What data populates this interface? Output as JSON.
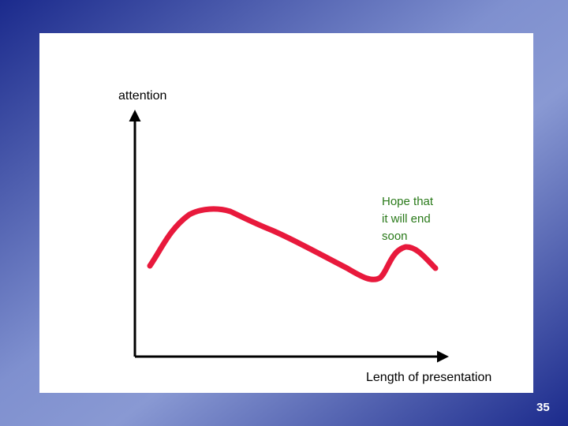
{
  "y_axis_label": "attention",
  "x_axis_label": "Length of presentation",
  "annotation": {
    "lines": [
      "Hope that",
      "it will end",
      "soon"
    ]
  },
  "slide_number": "35"
}
